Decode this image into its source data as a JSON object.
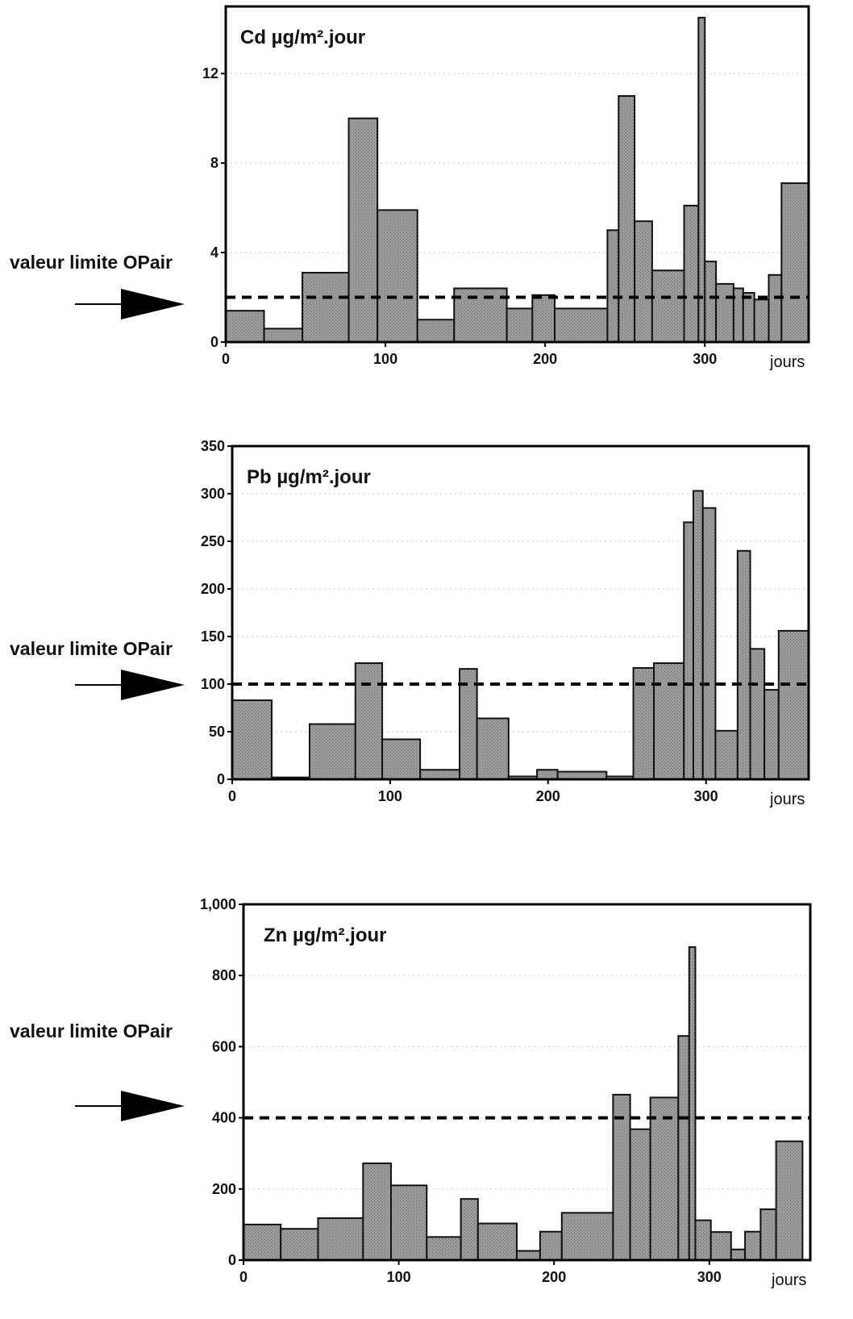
{
  "chart_data": [
    {
      "type": "bar",
      "title": "Cd µg/m².jour",
      "xlabel": "jours",
      "ylabel": "",
      "xlim": [
        0,
        365
      ],
      "ylim": [
        0,
        15
      ],
      "xticks": [
        "0",
        "100",
        "200",
        "300"
      ],
      "yticks": [
        "0",
        "4",
        "8",
        "12"
      ],
      "reference_line": {
        "label": "valeur limite OPair",
        "value": 2,
        "style": "dashed"
      },
      "bins": [
        {
          "x0": 0,
          "x1": 24,
          "value": 1.4
        },
        {
          "x0": 24,
          "x1": 48,
          "value": 0.6
        },
        {
          "x0": 48,
          "x1": 77,
          "value": 3.1
        },
        {
          "x0": 77,
          "x1": 95,
          "value": 10.0
        },
        {
          "x0": 95,
          "x1": 120,
          "value": 5.9
        },
        {
          "x0": 120,
          "x1": 143,
          "value": 1.0
        },
        {
          "x0": 143,
          "x1": 176,
          "value": 2.4
        },
        {
          "x0": 176,
          "x1": 192,
          "value": 1.5
        },
        {
          "x0": 192,
          "x1": 206,
          "value": 2.1
        },
        {
          "x0": 206,
          "x1": 239,
          "value": 1.5
        },
        {
          "x0": 239,
          "x1": 246,
          "value": 5.0
        },
        {
          "x0": 246,
          "x1": 256,
          "value": 11.0
        },
        {
          "x0": 256,
          "x1": 267,
          "value": 5.4
        },
        {
          "x0": 267,
          "x1": 287,
          "value": 3.2
        },
        {
          "x0": 287,
          "x1": 296,
          "value": 6.1
        },
        {
          "x0": 296,
          "x1": 300,
          "value": 14.5
        },
        {
          "x0": 300,
          "x1": 307,
          "value": 3.6
        },
        {
          "x0": 307,
          "x1": 318,
          "value": 2.6
        },
        {
          "x0": 318,
          "x1": 324,
          "value": 2.4
        },
        {
          "x0": 324,
          "x1": 331,
          "value": 2.2
        },
        {
          "x0": 331,
          "x1": 340,
          "value": 1.9
        },
        {
          "x0": 340,
          "x1": 348,
          "value": 3.0
        },
        {
          "x0": 348,
          "x1": 365,
          "value": 7.1
        }
      ]
    },
    {
      "type": "bar",
      "title": "Pb µg/m².jour",
      "xlabel": "jours",
      "ylabel": "",
      "xlim": [
        0,
        365
      ],
      "ylim": [
        0,
        350
      ],
      "xticks": [
        "0",
        "100",
        "200",
        "300"
      ],
      "yticks": [
        "0",
        "50",
        "100",
        "150",
        "200",
        "250",
        "300",
        "350"
      ],
      "reference_line": {
        "label": "valeur limite OPair",
        "value": 100,
        "style": "dashed"
      },
      "bins": [
        {
          "x0": 0,
          "x1": 25,
          "value": 83
        },
        {
          "x0": 25,
          "x1": 49,
          "value": 2
        },
        {
          "x0": 49,
          "x1": 78,
          "value": 58
        },
        {
          "x0": 78,
          "x1": 95,
          "value": 122
        },
        {
          "x0": 95,
          "x1": 119,
          "value": 42
        },
        {
          "x0": 119,
          "x1": 144,
          "value": 10
        },
        {
          "x0": 144,
          "x1": 155,
          "value": 116
        },
        {
          "x0": 155,
          "x1": 175,
          "value": 64
        },
        {
          "x0": 175,
          "x1": 193,
          "value": 3
        },
        {
          "x0": 193,
          "x1": 206,
          "value": 10
        },
        {
          "x0": 206,
          "x1": 237,
          "value": 8
        },
        {
          "x0": 237,
          "x1": 254,
          "value": 3
        },
        {
          "x0": 254,
          "x1": 267,
          "value": 117
        },
        {
          "x0": 267,
          "x1": 286,
          "value": 122
        },
        {
          "x0": 286,
          "x1": 292,
          "value": 270
        },
        {
          "x0": 292,
          "x1": 298,
          "value": 303
        },
        {
          "x0": 298,
          "x1": 306,
          "value": 285
        },
        {
          "x0": 306,
          "x1": 320,
          "value": 51
        },
        {
          "x0": 320,
          "x1": 328,
          "value": 240
        },
        {
          "x0": 328,
          "x1": 337,
          "value": 137
        },
        {
          "x0": 337,
          "x1": 346,
          "value": 94
        },
        {
          "x0": 346,
          "x1": 365,
          "value": 156
        }
      ]
    },
    {
      "type": "bar",
      "title": "Zn µg/m².jour",
      "xlabel": "jours",
      "ylabel": "",
      "xlim": [
        0,
        365
      ],
      "ylim": [
        0,
        1000
      ],
      "xticks": [
        "0",
        "100",
        "200",
        "300"
      ],
      "yticks": [
        "0",
        "200",
        "400",
        "600",
        "800",
        "1,000"
      ],
      "reference_line": {
        "label": "valeur limite OPair",
        "value": 400,
        "style": "dashed"
      },
      "bins": [
        {
          "x0": 0,
          "x1": 24,
          "value": 100
        },
        {
          "x0": 24,
          "x1": 48,
          "value": 88
        },
        {
          "x0": 48,
          "x1": 77,
          "value": 118
        },
        {
          "x0": 77,
          "x1": 95,
          "value": 272
        },
        {
          "x0": 95,
          "x1": 118,
          "value": 210
        },
        {
          "x0": 118,
          "x1": 140,
          "value": 65
        },
        {
          "x0": 140,
          "x1": 151,
          "value": 172
        },
        {
          "x0": 151,
          "x1": 176,
          "value": 103
        },
        {
          "x0": 176,
          "x1": 191,
          "value": 26
        },
        {
          "x0": 191,
          "x1": 205,
          "value": 80
        },
        {
          "x0": 205,
          "x1": 238,
          "value": 133
        },
        {
          "x0": 238,
          "x1": 249,
          "value": 465
        },
        {
          "x0": 249,
          "x1": 262,
          "value": 368
        },
        {
          "x0": 262,
          "x1": 280,
          "value": 457
        },
        {
          "x0": 280,
          "x1": 287,
          "value": 630
        },
        {
          "x0": 287,
          "x1": 291,
          "value": 880
        },
        {
          "x0": 291,
          "x1": 301,
          "value": 112
        },
        {
          "x0": 301,
          "x1": 314,
          "value": 79
        },
        {
          "x0": 314,
          "x1": 323,
          "value": 30
        },
        {
          "x0": 323,
          "x1": 333,
          "value": 80
        },
        {
          "x0": 333,
          "x1": 343,
          "value": 143
        },
        {
          "x0": 343,
          "x1": 360,
          "value": 334
        }
      ]
    }
  ]
}
